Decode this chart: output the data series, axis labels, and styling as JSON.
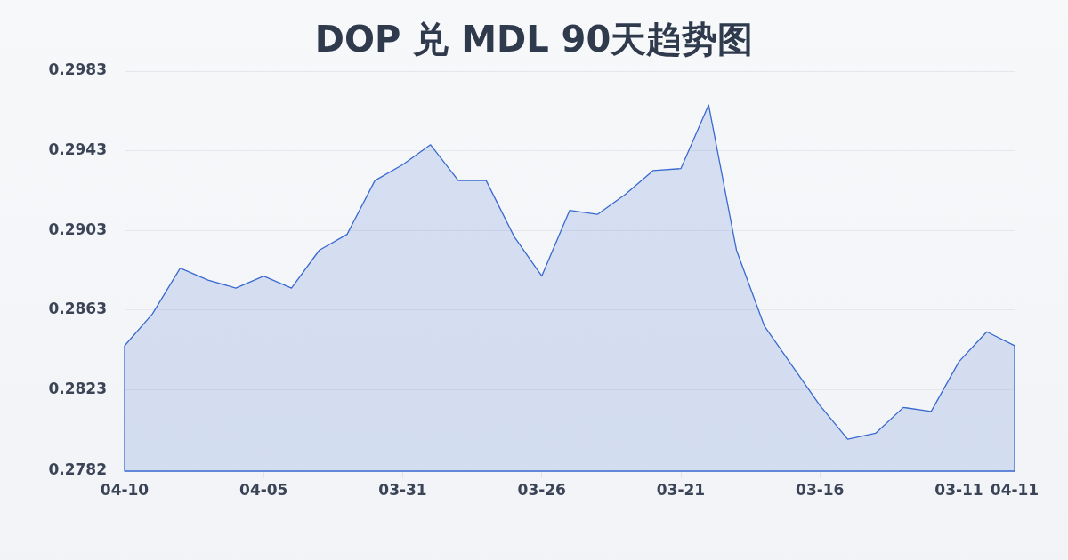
{
  "chart_data": {
    "type": "area",
    "title": "DOP 兑 MDL 90天趋势图",
    "categories": [
      "04-10",
      null,
      null,
      null,
      null,
      "04-05",
      null,
      null,
      null,
      null,
      "03-31",
      null,
      null,
      null,
      null,
      "03-26",
      null,
      null,
      null,
      null,
      "03-21",
      null,
      null,
      null,
      null,
      "03-16",
      null,
      null,
      null,
      null,
      "03-11",
      null,
      "04-11"
    ],
    "values": [
      0.2845,
      0.2861,
      0.2884,
      0.2878,
      0.2874,
      0.288,
      0.2874,
      0.2893,
      0.2901,
      0.2928,
      0.2936,
      0.2946,
      0.2928,
      0.2928,
      0.29,
      0.288,
      0.2913,
      0.2911,
      0.2921,
      0.2933,
      0.2934,
      0.2966,
      0.2893,
      0.2855,
      0.2835,
      0.2815,
      0.2798,
      0.2801,
      0.2814,
      0.2812,
      0.2837,
      0.2852,
      0.2845
    ],
    "color": "#3a6ad0",
    "ylim": [
      0.2782,
      0.2983
    ],
    "yticks": [
      0.2782,
      0.2823,
      0.2863,
      0.2903,
      0.2943,
      0.2983
    ],
    "grid": "y",
    "marker": "none",
    "line_style": "solid"
  }
}
